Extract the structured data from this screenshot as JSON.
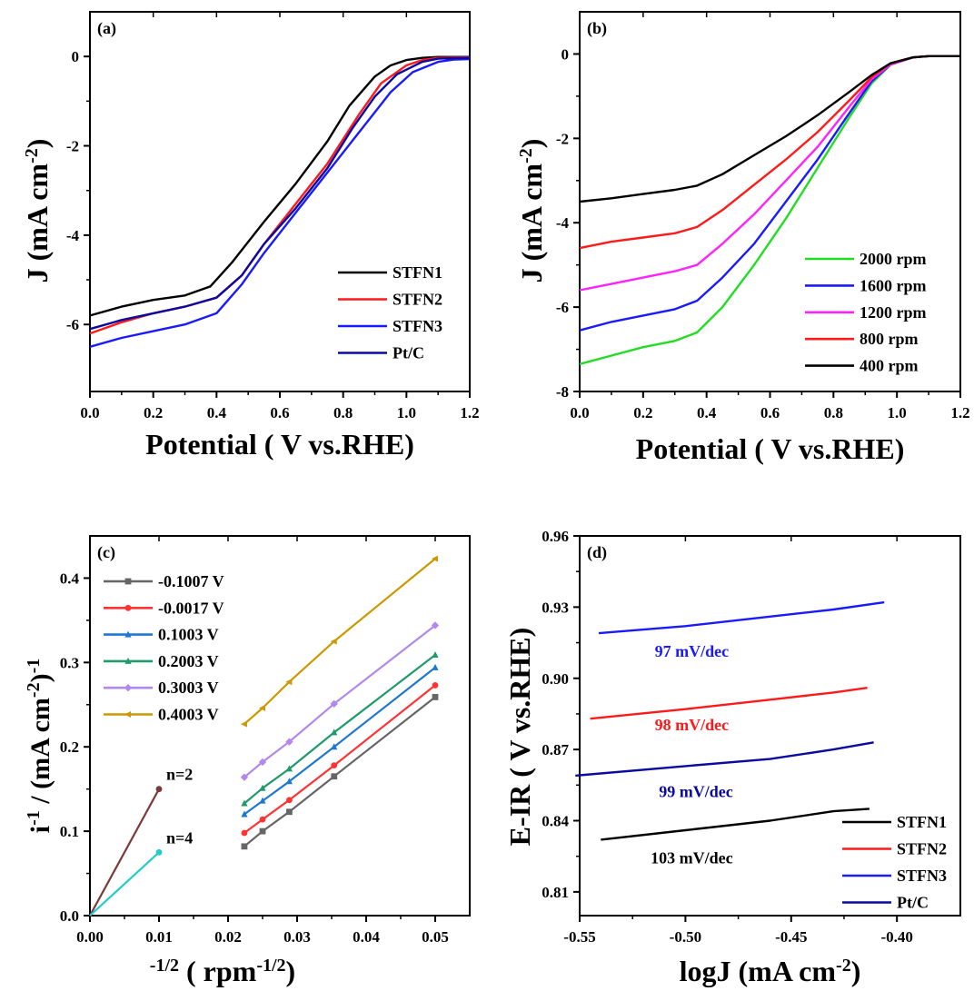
{
  "chart_data": [
    {
      "panel": "(a)",
      "type": "line",
      "xlabel": "Potential (   V vs.RHE)",
      "ylabel": "J (mA cm",
      "ylabel_sup": "-2",
      "ylabel_end": ")",
      "xlim": [
        0,
        1.2
      ],
      "ylim": [
        -7.5,
        1.0
      ],
      "xticks": [
        "0.0",
        "0.2",
        "0.4",
        "0.6",
        "0.8",
        "1.0",
        "1.2"
      ],
      "xtick_values": [
        0,
        0.2,
        0.4,
        0.6,
        0.8,
        1.0,
        1.2
      ],
      "yticks": [
        "0",
        "-2",
        "-4",
        "-6"
      ],
      "ytick_values": [
        0,
        -2,
        -4,
        -6
      ],
      "legend": "right-center",
      "series": [
        {
          "name": "STFN1",
          "color": "#000000",
          "x": [
            0,
            0.1,
            0.2,
            0.3,
            0.38,
            0.45,
            0.55,
            0.65,
            0.75,
            0.82,
            0.9,
            0.95,
            1.0,
            1.05,
            1.1,
            1.2
          ],
          "y": [
            -5.8,
            -5.6,
            -5.45,
            -5.35,
            -5.15,
            -4.6,
            -3.7,
            -2.85,
            -1.9,
            -1.1,
            -0.45,
            -0.2,
            -0.08,
            -0.03,
            -0.01,
            -0.01
          ]
        },
        {
          "name": "STFN2",
          "color": "#ff1a1a",
          "x": [
            0,
            0.1,
            0.2,
            0.3,
            0.4,
            0.48,
            0.55,
            0.65,
            0.75,
            0.85,
            0.92,
            1.0,
            1.05,
            1.1,
            1.2
          ],
          "y": [
            -6.2,
            -5.95,
            -5.75,
            -5.6,
            -5.4,
            -4.9,
            -4.2,
            -3.3,
            -2.4,
            -1.3,
            -0.6,
            -0.2,
            -0.08,
            -0.03,
            -0.02
          ]
        },
        {
          "name": "STFN3",
          "color": "#1a1aff",
          "x": [
            0,
            0.1,
            0.2,
            0.3,
            0.4,
            0.48,
            0.55,
            0.65,
            0.75,
            0.85,
            0.95,
            1.02,
            1.1,
            1.15,
            1.2
          ],
          "y": [
            -6.5,
            -6.3,
            -6.15,
            -6.0,
            -5.75,
            -5.1,
            -4.4,
            -3.5,
            -2.6,
            -1.7,
            -0.8,
            -0.35,
            -0.12,
            -0.07,
            -0.06
          ]
        },
        {
          "name": "Pt/C",
          "color": "#0a0aa0",
          "x": [
            0,
            0.1,
            0.2,
            0.3,
            0.4,
            0.48,
            0.55,
            0.65,
            0.75,
            0.83,
            0.9,
            0.97,
            1.05,
            1.1,
            1.2
          ],
          "y": [
            -6.1,
            -5.9,
            -5.75,
            -5.6,
            -5.4,
            -4.9,
            -4.2,
            -3.4,
            -2.5,
            -1.6,
            -0.9,
            -0.4,
            -0.12,
            -0.05,
            -0.03
          ]
        }
      ]
    },
    {
      "panel": "(b)",
      "type": "line",
      "xlabel": "Potential (   V vs.RHE)",
      "ylabel": "J (mA cm",
      "ylabel_sup": "-2",
      "ylabel_end": ")",
      "xlim": [
        0,
        1.2
      ],
      "ylim": [
        -8,
        1.0
      ],
      "xticks": [
        "0.0",
        "0.2",
        "0.4",
        "0.6",
        "0.8",
        "1.0",
        "1.2"
      ],
      "xtick_values": [
        0,
        0.2,
        0.4,
        0.6,
        0.8,
        1.0,
        1.2
      ],
      "yticks": [
        "0",
        "-2",
        "-4",
        "-6",
        "-8"
      ],
      "ytick_values": [
        0,
        -2,
        -4,
        -6,
        -8
      ],
      "legend": "right-center",
      "series": [
        {
          "name": "2000 rpm",
          "color": "#22dd22",
          "x": [
            0,
            0.1,
            0.2,
            0.3,
            0.37,
            0.45,
            0.55,
            0.65,
            0.75,
            0.85,
            0.92,
            0.98,
            1.05,
            1.1,
            1.2
          ],
          "y": [
            -7.35,
            -7.15,
            -6.95,
            -6.8,
            -6.6,
            -6.0,
            -5.0,
            -3.9,
            -2.7,
            -1.5,
            -0.7,
            -0.25,
            -0.08,
            -0.05,
            -0.05
          ]
        },
        {
          "name": "1600 rpm",
          "color": "#1a1aff",
          "x": [
            0,
            0.1,
            0.2,
            0.3,
            0.37,
            0.45,
            0.55,
            0.65,
            0.75,
            0.85,
            0.92,
            0.98,
            1.05,
            1.1,
            1.2
          ],
          "y": [
            -6.55,
            -6.35,
            -6.2,
            -6.05,
            -5.85,
            -5.3,
            -4.5,
            -3.5,
            -2.5,
            -1.4,
            -0.65,
            -0.25,
            -0.08,
            -0.05,
            -0.05
          ]
        },
        {
          "name": "1200 rpm",
          "color": "#ff22ff",
          "x": [
            0,
            0.1,
            0.2,
            0.3,
            0.37,
            0.45,
            0.55,
            0.65,
            0.75,
            0.85,
            0.92,
            0.98,
            1.05,
            1.1,
            1.2
          ],
          "y": [
            -5.6,
            -5.45,
            -5.3,
            -5.15,
            -5.0,
            -4.5,
            -3.8,
            -3.0,
            -2.2,
            -1.25,
            -0.6,
            -0.25,
            -0.08,
            -0.05,
            -0.05
          ]
        },
        {
          "name": "800 rpm",
          "color": "#ff1a1a",
          "x": [
            0,
            0.1,
            0.2,
            0.3,
            0.37,
            0.45,
            0.55,
            0.65,
            0.75,
            0.85,
            0.92,
            0.98,
            1.05,
            1.1,
            1.2
          ],
          "y": [
            -4.6,
            -4.45,
            -4.35,
            -4.25,
            -4.1,
            -3.7,
            -3.1,
            -2.5,
            -1.85,
            -1.1,
            -0.55,
            -0.22,
            -0.08,
            -0.05,
            -0.05
          ]
        },
        {
          "name": "400 rpm",
          "color": "#000000",
          "x": [
            0,
            0.1,
            0.2,
            0.3,
            0.37,
            0.45,
            0.55,
            0.65,
            0.75,
            0.85,
            0.92,
            0.98,
            1.05,
            1.1,
            1.2
          ],
          "y": [
            -3.5,
            -3.42,
            -3.32,
            -3.22,
            -3.12,
            -2.85,
            -2.4,
            -1.95,
            -1.45,
            -0.9,
            -0.5,
            -0.22,
            -0.08,
            -0.05,
            -0.05
          ]
        }
      ]
    },
    {
      "panel": "(c)",
      "type": "line",
      "xlabel": "-1/2 (   rpm",
      "xlabel_sup": "-1/2",
      "xlabel_end": ")",
      "ylabel_parts": [
        "i",
        "-1",
        " / (mA cm",
        "-2",
        ")",
        "-1"
      ],
      "xlim": [
        0,
        0.055
      ],
      "ylim": [
        0,
        0.45
      ],
      "xticks": [
        "0.00",
        "0.01",
        "0.02",
        "0.03",
        "0.04",
        "0.05"
      ],
      "xtick_values": [
        0,
        0.01,
        0.02,
        0.03,
        0.04,
        0.05
      ],
      "yticks": [
        "0.0",
        "0.1",
        "0.2",
        "0.3",
        "0.4"
      ],
      "ytick_values": [
        0,
        0.1,
        0.2,
        0.3,
        0.4
      ],
      "legend": "top-left",
      "x": [
        0.02236,
        0.025,
        0.02887,
        0.03536,
        0.05
      ],
      "series": [
        {
          "name": "-0.1007 V",
          "color": "#666666",
          "marker": "square",
          "y": [
            0.082,
            0.1,
            0.123,
            0.165,
            0.259
          ]
        },
        {
          "name": "-0.0017 V",
          "color": "#ff3333",
          "marker": "circle",
          "y": [
            0.098,
            0.114,
            0.137,
            0.178,
            0.273
          ]
        },
        {
          "name": "0.1003 V",
          "color": "#1e78d0",
          "marker": "triangle",
          "y": [
            0.12,
            0.136,
            0.159,
            0.2,
            0.294
          ]
        },
        {
          "name": "0.2003 V",
          "color": "#1f9a6a",
          "marker": "triangle",
          "y": [
            0.133,
            0.151,
            0.174,
            0.217,
            0.309
          ]
        },
        {
          "name": "0.3003 V",
          "color": "#b388ee",
          "marker": "diamond",
          "y": [
            0.164,
            0.182,
            0.206,
            0.251,
            0.344
          ]
        },
        {
          "name": "0.4003 V",
          "color": "#cc9900",
          "marker": "triangle-left",
          "y": [
            0.227,
            0.246,
            0.277,
            0.325,
            0.423
          ]
        }
      ],
      "reference_lines": [
        {
          "label": "n=2",
          "color": "#7a3a3a",
          "x": [
            0,
            0.01
          ],
          "y": [
            0,
            0.15
          ]
        },
        {
          "label": "n=4",
          "color": "#22cccc",
          "x": [
            0,
            0.01
          ],
          "y": [
            0,
            0.075
          ]
        }
      ]
    },
    {
      "panel": "(d)",
      "type": "line",
      "xlabel": "logJ (mA cm",
      "xlabel_sup": "-2",
      "xlabel_end": ")",
      "ylabel": "E-IR (   V vs.RHE)",
      "xlim": [
        -0.55,
        -0.37
      ],
      "ylim": [
        0.8,
        0.96
      ],
      "xticks": [
        "-0.55",
        "-0.50",
        "-0.45",
        "-0.40"
      ],
      "xtick_values": [
        -0.55,
        -0.5,
        -0.45,
        -0.4
      ],
      "yticks": [
        "0.81",
        "0.84",
        "0.87",
        "0.90",
        "0.93",
        "0.96"
      ],
      "ytick_values": [
        0.81,
        0.84,
        0.87,
        0.9,
        0.93,
        0.96
      ],
      "legend": "bottom-right",
      "series": [
        {
          "name": "STFN1",
          "color": "#000000",
          "x": [
            -0.54,
            -0.5,
            -0.46,
            -0.43,
            -0.413
          ],
          "y": [
            0.832,
            0.836,
            0.84,
            0.844,
            0.845
          ]
        },
        {
          "name": "STFN2",
          "color": "#ff1a1a",
          "x": [
            -0.545,
            -0.5,
            -0.46,
            -0.43,
            -0.414
          ],
          "y": [
            0.883,
            0.887,
            0.891,
            0.894,
            0.896
          ]
        },
        {
          "name": "STFN3",
          "color": "#1a1aff",
          "x": [
            -0.541,
            -0.5,
            -0.45,
            -0.43,
            -0.406
          ],
          "y": [
            0.919,
            0.922,
            0.927,
            0.929,
            0.932
          ]
        },
        {
          "name": "Pt/C",
          "color": "#0a0aa0",
          "x": [
            -0.552,
            -0.5,
            -0.46,
            -0.43,
            -0.411
          ],
          "y": [
            0.859,
            0.863,
            0.866,
            0.87,
            0.873
          ]
        }
      ],
      "annotations": [
        {
          "text": "97 mV/dec",
          "color": "#1a1aff",
          "x": -0.497,
          "y": 0.909
        },
        {
          "text": "98 mV/dec",
          "color": "#ff1a1a",
          "x": -0.497,
          "y": 0.878
        },
        {
          "text": "99 mV/dec",
          "color": "#0a0aa0",
          "x": -0.495,
          "y": 0.85
        },
        {
          "text": "103 mV/dec",
          "color": "#000000",
          "x": -0.497,
          "y": 0.822
        }
      ]
    }
  ]
}
